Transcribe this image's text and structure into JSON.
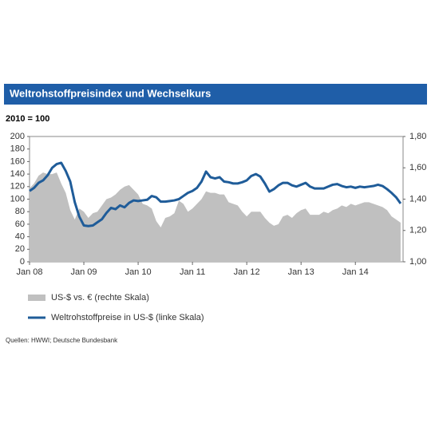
{
  "chart_data": {
    "type": "line",
    "title": "Weltrohstoffpreisindex  und Wechselkurs",
    "subtitle": "2010 = 100",
    "source": "Quellen: HWWI; Deutsche Bundesbank",
    "categories": [
      "Jan 08",
      null,
      null,
      null,
      null,
      null,
      null,
      null,
      null,
      null,
      null,
      null,
      "Jan 09",
      null,
      null,
      null,
      null,
      null,
      null,
      null,
      null,
      null,
      null,
      null,
      "Jan 10",
      null,
      null,
      null,
      null,
      null,
      null,
      null,
      null,
      null,
      null,
      null,
      "Jan 11",
      null,
      null,
      null,
      null,
      null,
      null,
      null,
      null,
      null,
      null,
      null,
      "Jan 12",
      null,
      null,
      null,
      null,
      null,
      null,
      null,
      null,
      null,
      null,
      null,
      "Jan 13",
      null,
      null,
      null,
      null,
      null,
      null,
      null,
      null,
      null,
      null,
      null,
      "Jan 14",
      null,
      null,
      null,
      null,
      null,
      null,
      null,
      null,
      null,
      null
    ],
    "ylim": [
      0,
      200
    ],
    "yticks": [
      0,
      20,
      40,
      60,
      80,
      100,
      120,
      140,
      160,
      180,
      200
    ],
    "y2lim": [
      1.0,
      1.8
    ],
    "y2ticks": [
      {
        "value": 1.0,
        "label": "1,00"
      },
      {
        "value": 1.2,
        "label": "1,20"
      },
      {
        "value": 1.4,
        "label": "1,40"
      },
      {
        "value": 1.6,
        "label": "1,60"
      },
      {
        "value": 1.8,
        "label": "1,80"
      }
    ],
    "series": [
      {
        "name": "US-$ vs. € (rechte Skala)",
        "type": "area",
        "axis": "y2",
        "color": "#c0c0c0",
        "values": [
          1.47,
          1.5,
          1.55,
          1.57,
          1.56,
          1.56,
          1.57,
          1.5,
          1.44,
          1.33,
          1.27,
          1.34,
          1.32,
          1.28,
          1.31,
          1.32,
          1.36,
          1.4,
          1.41,
          1.43,
          1.46,
          1.48,
          1.49,
          1.46,
          1.43,
          1.37,
          1.36,
          1.34,
          1.26,
          1.22,
          1.28,
          1.29,
          1.31,
          1.39,
          1.37,
          1.32,
          1.34,
          1.37,
          1.4,
          1.45,
          1.44,
          1.44,
          1.43,
          1.43,
          1.38,
          1.37,
          1.36,
          1.32,
          1.29,
          1.32,
          1.32,
          1.32,
          1.28,
          1.25,
          1.23,
          1.24,
          1.29,
          1.3,
          1.28,
          1.31,
          1.33,
          1.34,
          1.3,
          1.3,
          1.3,
          1.32,
          1.31,
          1.33,
          1.34,
          1.36,
          1.35,
          1.37,
          1.36,
          1.37,
          1.38,
          1.38,
          1.37,
          1.36,
          1.35,
          1.33,
          1.29,
          1.27,
          1.25
        ]
      },
      {
        "name": "Weltrohstoffpreise in US-$ (linke Skala)",
        "type": "line",
        "color": "#1f5c99",
        "values": [
          113,
          118,
          126,
          130,
          138,
          150,
          156,
          158,
          145,
          128,
          95,
          72,
          58,
          57,
          58,
          63,
          68,
          78,
          86,
          84,
          90,
          87,
          94,
          98,
          97,
          98,
          99,
          105,
          103,
          96,
          96,
          97,
          98,
          100,
          105,
          110,
          113,
          118,
          128,
          144,
          135,
          133,
          135,
          128,
          127,
          125,
          125,
          127,
          130,
          137,
          140,
          136,
          125,
          112,
          116,
          122,
          126,
          126,
          122,
          120,
          123,
          126,
          120,
          117,
          117,
          117,
          120,
          123,
          124,
          121,
          119,
          120,
          118,
          120,
          119,
          120,
          121,
          123,
          121,
          116,
          110,
          103,
          93
        ]
      }
    ]
  }
}
